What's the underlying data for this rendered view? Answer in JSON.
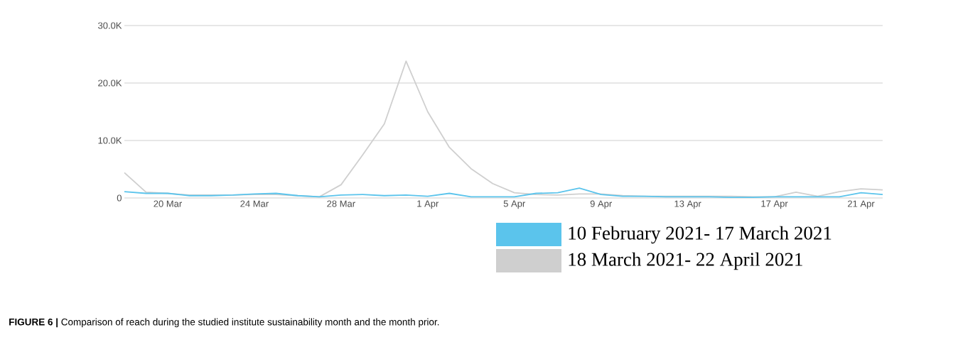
{
  "chart_data": {
    "type": "line",
    "x": [
      "2021-03-18",
      "2021-03-19",
      "2021-03-20",
      "2021-03-21",
      "2021-03-22",
      "2021-03-23",
      "2021-03-24",
      "2021-03-25",
      "2021-03-26",
      "2021-03-27",
      "2021-03-28",
      "2021-03-29",
      "2021-03-30",
      "2021-03-31",
      "2021-04-01",
      "2021-04-02",
      "2021-04-03",
      "2021-04-04",
      "2021-04-05",
      "2021-04-06",
      "2021-04-07",
      "2021-04-08",
      "2021-04-09",
      "2021-04-10",
      "2021-04-11",
      "2021-04-12",
      "2021-04-13",
      "2021-04-14",
      "2021-04-15",
      "2021-04-16",
      "2021-04-17",
      "2021-04-18",
      "2021-04-19",
      "2021-04-20",
      "2021-04-21",
      "2021-04-22"
    ],
    "series": [
      {
        "name": "10 February 2021- 17 March 2021",
        "color": "#5bc4ec",
        "values": [
          1100,
          800,
          800,
          400,
          400,
          500,
          700,
          800,
          400,
          200,
          500,
          600,
          400,
          500,
          300,
          800,
          200,
          200,
          200,
          800,
          900,
          1700,
          600,
          300,
          300,
          200,
          200,
          200,
          100,
          100,
          200,
          200,
          200,
          200,
          900,
          600
        ]
      },
      {
        "name": "18 March 2021- 22 April 2021",
        "color": "#cfcfcf",
        "values": [
          4400,
          1000,
          800,
          500,
          500,
          500,
          600,
          600,
          400,
          200,
          2300,
          7500,
          12900,
          23800,
          15000,
          8800,
          5100,
          2500,
          900,
          600,
          500,
          700,
          700,
          400,
          300,
          300,
          300,
          300,
          300,
          200,
          200,
          1000,
          300,
          1100,
          1600,
          1400
        ]
      }
    ],
    "xlim": [
      "2021-03-18",
      "2021-04-22"
    ],
    "xticks": [
      {
        "value": "2021-03-20",
        "label": "20 Mar"
      },
      {
        "value": "2021-03-24",
        "label": "24 Mar"
      },
      {
        "value": "2021-03-28",
        "label": "28 Mar"
      },
      {
        "value": "2021-04-01",
        "label": "1 Apr"
      },
      {
        "value": "2021-04-05",
        "label": "5 Apr"
      },
      {
        "value": "2021-04-09",
        "label": "9 Apr"
      },
      {
        "value": "2021-04-13",
        "label": "13 Apr"
      },
      {
        "value": "2021-04-17",
        "label": "17 Apr"
      },
      {
        "value": "2021-04-21",
        "label": "21 Apr"
      }
    ],
    "ylim": [
      0,
      30000
    ],
    "yticks": [
      0,
      {
        "value": 10000,
        "label": "10.0K"
      },
      {
        "value": 20000,
        "label": "20.0K"
      },
      {
        "value": 30000,
        "label": "30.0K"
      }
    ],
    "grid": "y",
    "legend": "bottom right",
    "annotations": [
      "**FIGURE 6 |** Comparison of reach during the studied institute sustainability month and the month prior."
    ]
  }
}
